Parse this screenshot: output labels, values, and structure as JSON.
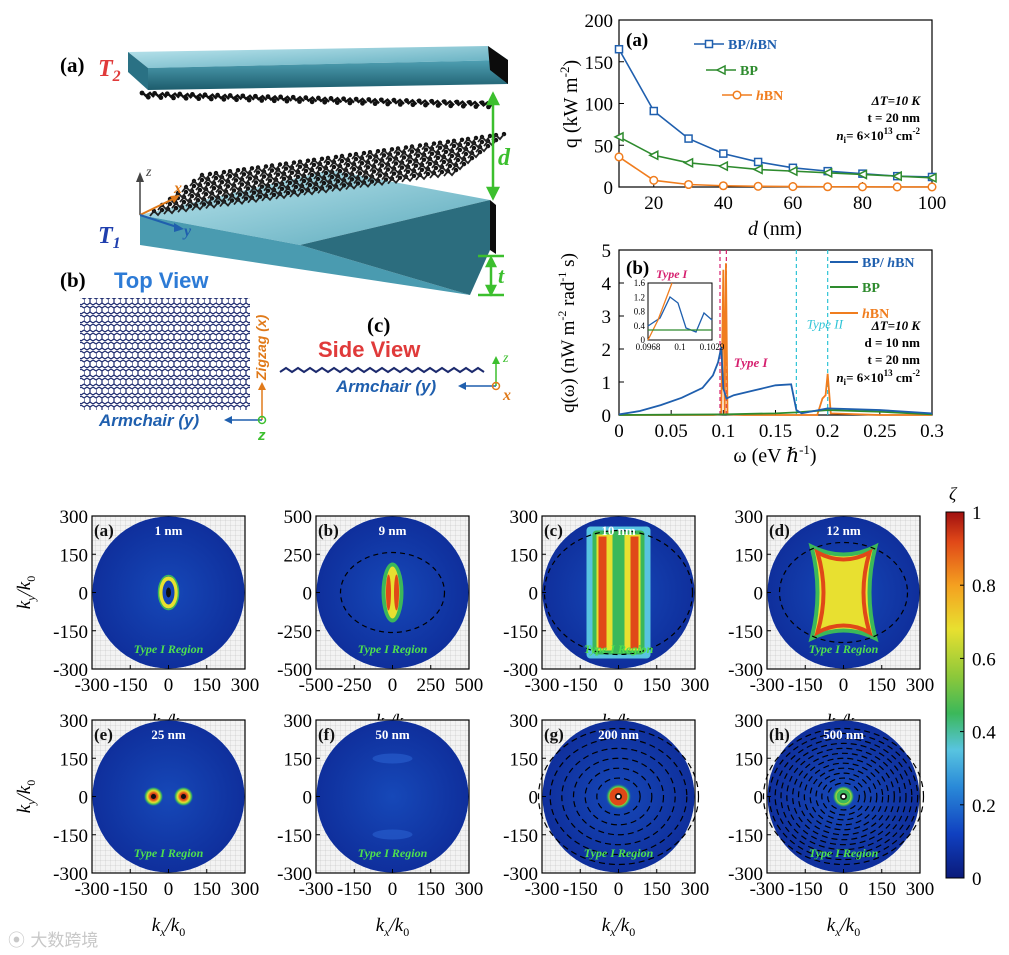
{
  "schematic": {
    "label_a": "(a)",
    "T2": "T",
    "T2_sub": "2",
    "T1": "T",
    "T1_sub": "1",
    "d": "d",
    "t": "t",
    "z": "z",
    "x": "x",
    "y": "y",
    "label_b": "(b)",
    "top_view": "Top View",
    "zigzag": "Zigzag (x)",
    "armchair_top": "Armchair (y)",
    "label_c": "(c)",
    "side_view": "Side View",
    "armchair_side": "Armchair (y)"
  },
  "colors": {
    "bp_hbn": "#1f5fae",
    "bp": "#2e8b2e",
    "hbn": "#f07d1e",
    "type1": "#d6206f",
    "type2": "#2ec4d6",
    "slab": "#3c8fa3",
    "title_blue": "#2d7bd6",
    "title_red": "#e03a3a"
  },
  "chart_data": [
    {
      "id": "q-vs-d",
      "type": "line",
      "label": "(a)",
      "xlabel_var": "d",
      "xlabel_unit": " (nm)",
      "ylabel": "q (kW m",
      "ylabel_sup": "-2",
      "ylabel_end": ")",
      "xlim": [
        10,
        100
      ],
      "ylim": [
        0,
        200
      ],
      "xticks": [
        20,
        40,
        60,
        80,
        100
      ],
      "yticks": [
        0,
        50,
        100,
        150,
        200
      ],
      "x": [
        10,
        20,
        30,
        40,
        50,
        60,
        70,
        80,
        90,
        100
      ],
      "series": [
        {
          "name": "BP/hBN",
          "name_a": "BP/",
          "name_b": "h",
          "name_c": "BN",
          "marker": "square",
          "color": "#1f5fae",
          "values": [
            165,
            91,
            58,
            40,
            30,
            23,
            19,
            16,
            13,
            12
          ]
        },
        {
          "name": "BP",
          "marker": "triangle-left",
          "color": "#2e8b2e",
          "values": [
            60,
            38,
            29,
            25,
            21,
            19,
            17,
            15,
            13,
            11
          ]
        },
        {
          "name": "hBN",
          "name_b": "h",
          "name_c": "BN",
          "marker": "circle",
          "color": "#f07d1e",
          "values": [
            36,
            8,
            3,
            1.5,
            0.8,
            0.5,
            0.3,
            0.2,
            0.1,
            0.1
          ]
        }
      ],
      "annotations": [
        "ΔT=10 K",
        "t = 20 nm",
        "n",
        "i",
        "= 6×10",
        "13",
        " cm",
        "-2"
      ]
    },
    {
      "id": "q-omega",
      "type": "line",
      "label": "(b)",
      "xlabel": "ω (eV ℏ",
      "xlabel_sup": "-1",
      "xlabel_end": ")",
      "ylabel": "q(ω) (nW m",
      "ylabel_sup1": "-2",
      "ylabel_mid": " rad",
      "ylabel_sup2": "-1",
      "ylabel_end": " s)",
      "xlim": [
        0,
        0.3
      ],
      "ylim": [
        0,
        5
      ],
      "xticks": [
        "0",
        "0.05",
        "0.1",
        "0.15",
        "0.2",
        "0.25",
        "0.3"
      ],
      "xtick_values": [
        0,
        0.05,
        0.1,
        0.15,
        0.2,
        0.25,
        0.3
      ],
      "yticks": [
        0,
        1,
        2,
        3,
        4,
        5
      ],
      "legend": [
        "BP/ hBN",
        "BP",
        "hBN"
      ],
      "legend_parts": [
        [
          "BP/ ",
          "h",
          "BN"
        ],
        [
          "BP",
          "",
          ""
        ],
        [
          "",
          "h",
          "BN"
        ]
      ],
      "series": [
        {
          "name": "BP/hBN",
          "color": "#1f5fae",
          "x": [
            0,
            0.02,
            0.04,
            0.06,
            0.08,
            0.09,
            0.095,
            0.098,
            0.1,
            0.103,
            0.11,
            0.13,
            0.15,
            0.165,
            0.17,
            0.175,
            0.2,
            0.25,
            0.3
          ],
          "y": [
            0.02,
            0.12,
            0.3,
            0.52,
            0.82,
            1.2,
            1.6,
            2.05,
            0.8,
            0.5,
            0.6,
            0.75,
            0.9,
            0.93,
            0.15,
            0.05,
            0.2,
            0.15,
            0.05
          ]
        },
        {
          "name": "BP",
          "color": "#2e8b2e",
          "x": [
            0,
            0.05,
            0.1,
            0.15,
            0.17,
            0.2,
            0.25,
            0.3
          ],
          "y": [
            0,
            0.01,
            0.02,
            0.05,
            0.08,
            0.15,
            0.1,
            0.02
          ]
        },
        {
          "name": "hBN",
          "color": "#f07d1e",
          "x": [
            0,
            0.09,
            0.098,
            0.1,
            0.1013,
            0.1025,
            0.104,
            0.12,
            0.19,
            0.195,
            0.198,
            0.2,
            0.203,
            0.25,
            0.3
          ],
          "y": [
            0,
            0,
            0.02,
            4.4,
            0.05,
            4.6,
            0.02,
            0,
            0,
            0.5,
            0.6,
            1.25,
            0.05,
            0,
            0
          ]
        }
      ],
      "vlines": [
        {
          "x": 0.0968,
          "color": "#d6206f"
        },
        {
          "x": 0.1029,
          "color": "#d6206f"
        },
        {
          "x": 0.17,
          "color": "#2ec4d6"
        },
        {
          "x": 0.2,
          "color": "#2ec4d6"
        }
      ],
      "type_labels": [
        {
          "text": "Type I",
          "x": 0.11,
          "y": 2.0
        },
        {
          "text": "Type II",
          "x": 0.178,
          "y": 2.8
        }
      ],
      "annotations": [
        "ΔT=10 K",
        "d = 10 nm",
        "t = 20 nm",
        "n",
        "i",
        "= 6×10",
        "13",
        " cm",
        "-2"
      ],
      "inset": {
        "title": "Type I",
        "xticks": [
          "0.0968",
          "0.1",
          "0.1029"
        ],
        "yticks": [
          "0",
          "0.4",
          "0.8",
          "1.2",
          "1.6"
        ]
      }
    },
    {
      "id": "xi-maps",
      "type": "heatmap",
      "colorbar_label": "ζ",
      "colorbar_ticks": [
        "0",
        "0.2",
        "0.4",
        "0.6",
        "0.8",
        "1"
      ],
      "colorbar_stops": [
        "#0a1a7a",
        "#1040c0",
        "#2a8ad8",
        "#58c4e0",
        "#3bb85a",
        "#8cc83a",
        "#e8e030",
        "#f4a020",
        "#e04818",
        "#a01010"
      ],
      "xlabel": "k",
      "xlabel_sub": "x",
      "xlabel_mid": "/k",
      "xlabel_sub2": "0",
      "ylabel": "k",
      "ylabel_sub": "y",
      "ylabel_mid": "/k",
      "ylabel_sub2": "0",
      "region_label": "Type I Region",
      "panels": [
        {
          "label": "(a)",
          "distance": "1 nm",
          "range": 300,
          "ticks": [
            "-300",
            "-150",
            "0",
            "150",
            "300"
          ],
          "pattern": "ring"
        },
        {
          "label": "(b)",
          "distance": "9 nm",
          "range": 500,
          "ticks": [
            "-500",
            "-250",
            "0",
            "250",
            "500"
          ],
          "pattern": "bowtie-small"
        },
        {
          "label": "(c)",
          "distance": "10 nm",
          "range": 300,
          "ticks": [
            "-300",
            "-150",
            "0",
            "150",
            "300"
          ],
          "pattern": "bowtie-big"
        },
        {
          "label": "(d)",
          "distance": "12 nm",
          "range": 300,
          "ticks": [
            "-300",
            "-150",
            "0",
            "150",
            "300"
          ],
          "pattern": "hourglass"
        },
        {
          "label": "(e)",
          "distance": "25 nm",
          "range": 300,
          "ticks": [
            "-300",
            "-150",
            "0",
            "150",
            "300"
          ],
          "pattern": "dots"
        },
        {
          "label": "(f)",
          "distance": "50 nm",
          "range": 300,
          "ticks": [
            "-300",
            "-150",
            "0",
            "150",
            "300"
          ],
          "pattern": "faint"
        },
        {
          "label": "(g)",
          "distance": "200 nm",
          "range": 300,
          "ticks": [
            "-300",
            "-150",
            "0",
            "150",
            "300"
          ],
          "pattern": "rings"
        },
        {
          "label": "(h)",
          "distance": "500 nm",
          "range": 300,
          "ticks": [
            "-300",
            "-150",
            "0",
            "150",
            "300"
          ],
          "pattern": "rings-dense"
        }
      ]
    }
  ],
  "watermark": "大数跨境"
}
